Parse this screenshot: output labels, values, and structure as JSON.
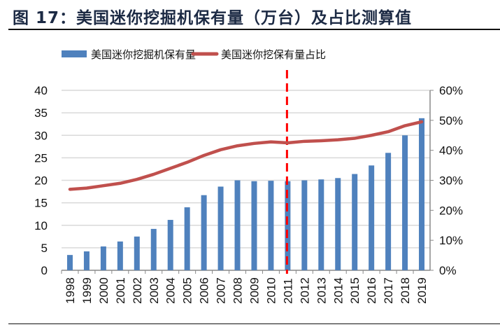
{
  "title": "图 17：美国迷你挖掘机保有量（万台）及占比测算值",
  "chart_data": {
    "type": "bar+line",
    "title": "图 17：美国迷你挖掘机保有量（万台）及占比测算值",
    "categories": [
      "1998",
      "1999",
      "2000",
      "2001",
      "2002",
      "2003",
      "2004",
      "2005",
      "2006",
      "2007",
      "2008",
      "2009",
      "2010",
      "2011",
      "2012",
      "2013",
      "2014",
      "2015",
      "2016",
      "2017",
      "2018",
      "2019"
    ],
    "series": [
      {
        "name": "美国迷你挖掘机保有量",
        "type": "bar",
        "axis": "left",
        "color": "#4f81bd",
        "values": [
          3.4,
          4.2,
          5.3,
          6.4,
          7.5,
          9.2,
          11.2,
          14.0,
          16.7,
          18.6,
          20.0,
          19.8,
          19.9,
          19.8,
          20.0,
          20.2,
          20.5,
          21.4,
          23.3,
          26.1,
          30.0,
          33.8
        ]
      },
      {
        "name": "美国迷你挖保有量占比",
        "type": "line",
        "axis": "right",
        "color": "#c0504d",
        "values": [
          27.0,
          27.4,
          28.2,
          29.0,
          30.3,
          32.0,
          34.0,
          36.0,
          38.3,
          40.2,
          41.5,
          42.3,
          42.8,
          42.5,
          43.0,
          43.2,
          43.5,
          44.0,
          45.0,
          46.2,
          48.2,
          49.5
        ]
      }
    ],
    "y_left": {
      "range": [
        0,
        40
      ],
      "ticks": [
        "0",
        "5",
        "10",
        "15",
        "20",
        "25",
        "30",
        "35",
        "40"
      ]
    },
    "y_right": {
      "range": [
        0,
        60
      ],
      "ticks": [
        "0%",
        "10%",
        "20%",
        "30%",
        "40%",
        "50%",
        "60%"
      ]
    },
    "grid": true,
    "legend_position": "top",
    "annotation": {
      "type": "vertical-dashed-line",
      "at": "2011",
      "color": "#ff0000"
    }
  }
}
